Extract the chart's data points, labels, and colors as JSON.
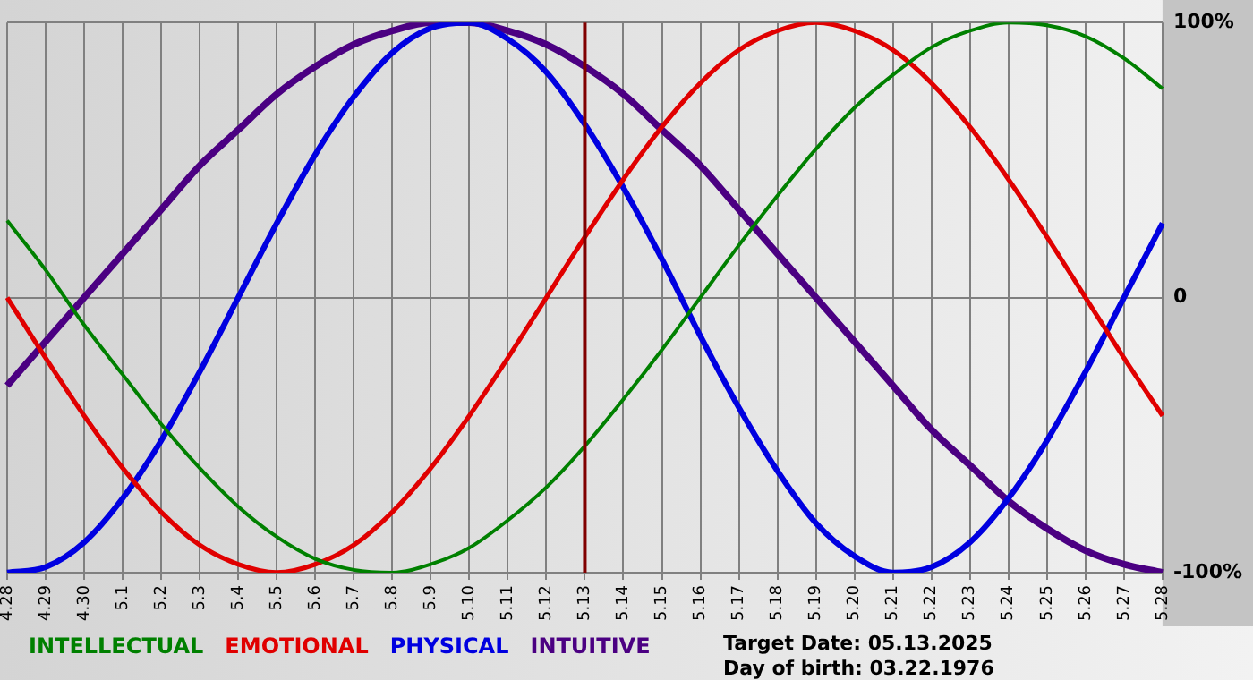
{
  "chart_data": {
    "type": "line",
    "categories": [
      "4.28",
      "4.29",
      "4.30",
      "5.1",
      "5.2",
      "5.3",
      "5.4",
      "5.5",
      "5.6",
      "5.7",
      "5.8",
      "5.9",
      "5.10",
      "5.11",
      "5.12",
      "5.13",
      "5.14",
      "5.15",
      "5.16",
      "5.17",
      "5.18",
      "5.19",
      "5.20",
      "5.21",
      "5.22",
      "5.23",
      "5.24",
      "5.25",
      "5.26",
      "5.27",
      "5.28"
    ],
    "series": [
      {
        "name": "INTELLECTUAL",
        "color": "#008000",
        "values": [
          28,
          10,
          -10,
          -28,
          -46,
          -62,
          -76,
          -87,
          -95,
          -99,
          -100,
          -97,
          -91,
          -81,
          -69,
          -54,
          -37,
          -19,
          0,
          19,
          37,
          54,
          69,
          81,
          91,
          97,
          100,
          99,
          95,
          87,
          76
        ]
      },
      {
        "name": "EMOTIONAL",
        "color": "#e00000",
        "values": [
          0,
          -22,
          -43,
          -62,
          -78,
          -90,
          -97,
          -100,
          -97,
          -90,
          -78,
          -62,
          -43,
          -22,
          0,
          22,
          43,
          62,
          78,
          90,
          97,
          100,
          97,
          90,
          78,
          62,
          43,
          22,
          0,
          -22,
          -43
        ]
      },
      {
        "name": "PHYSICAL",
        "color": "#0000e0",
        "values": [
          -100,
          -98,
          -89,
          -73,
          -52,
          -27,
          0,
          27,
          52,
          73,
          89,
          98,
          100,
          94,
          82,
          63,
          40,
          14,
          -14,
          -40,
          -63,
          -82,
          -94,
          -100,
          -98,
          -89,
          -73,
          -52,
          -27,
          0,
          27
        ]
      },
      {
        "name": "INTUITIVE",
        "color": "#4b0082",
        "values": [
          -32,
          -16,
          0,
          16,
          32,
          48,
          61,
          74,
          84,
          92,
          97,
          100,
          100,
          97,
          92,
          84,
          74,
          61,
          48,
          32,
          16,
          0,
          -16,
          -32,
          -48,
          -61,
          -74,
          -84,
          -92,
          -97,
          -100
        ]
      }
    ],
    "ylim": [
      -100,
      100
    ],
    "yticks": [
      {
        "value": -100,
        "label": "-100%"
      },
      0,
      {
        "value": 100,
        "label": "100%"
      }
    ],
    "grid": true,
    "legend": "bottom left",
    "marker": "none",
    "line_style": "solid",
    "ref_lines": [
      {
        "axis": "x",
        "value": "5.13",
        "color": "#800000"
      }
    ],
    "annotations": [
      "Target Date: 05.13.2025",
      "Day of birth: 03.22.1976"
    ]
  }
}
